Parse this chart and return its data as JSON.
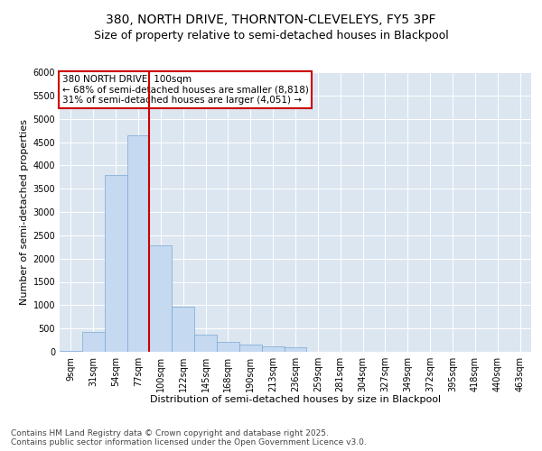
{
  "title1": "380, NORTH DRIVE, THORNTON-CLEVELEYS, FY5 3PF",
  "title2": "Size of property relative to semi-detached houses in Blackpool",
  "xlabel": "Distribution of semi-detached houses by size in Blackpool",
  "ylabel": "Number of semi-detached properties",
  "categories": [
    "9sqm",
    "31sqm",
    "54sqm",
    "77sqm",
    "100sqm",
    "122sqm",
    "145sqm",
    "168sqm",
    "190sqm",
    "213sqm",
    "236sqm",
    "259sqm",
    "281sqm",
    "304sqm",
    "327sqm",
    "349sqm",
    "372sqm",
    "395sqm",
    "418sqm",
    "440sqm",
    "463sqm"
  ],
  "values": [
    20,
    430,
    3800,
    4650,
    2280,
    970,
    370,
    210,
    160,
    120,
    90,
    0,
    0,
    0,
    0,
    0,
    0,
    0,
    0,
    0,
    0
  ],
  "bar_color": "#c5d9f1",
  "bar_edge_color": "#7ba7d4",
  "vline_color": "#cc0000",
  "vline_x_index": 3.5,
  "annotation_text": "380 NORTH DRIVE: 100sqm\n← 68% of semi-detached houses are smaller (8,818)\n31% of semi-detached houses are larger (4,051) →",
  "annotation_box_color": "#ffffff",
  "annotation_box_edge": "#cc0000",
  "ylim_max": 6000,
  "yticks": [
    0,
    500,
    1000,
    1500,
    2000,
    2500,
    3000,
    3500,
    4000,
    4500,
    5000,
    5500,
    6000
  ],
  "background_color": "#dce6f1",
  "footer": "Contains HM Land Registry data © Crown copyright and database right 2025.\nContains public sector information licensed under the Open Government Licence v3.0.",
  "title_fontsize": 10,
  "subtitle_fontsize": 9,
  "axis_label_fontsize": 8,
  "tick_fontsize": 7,
  "annotation_fontsize": 7.5,
  "footer_fontsize": 6.5
}
